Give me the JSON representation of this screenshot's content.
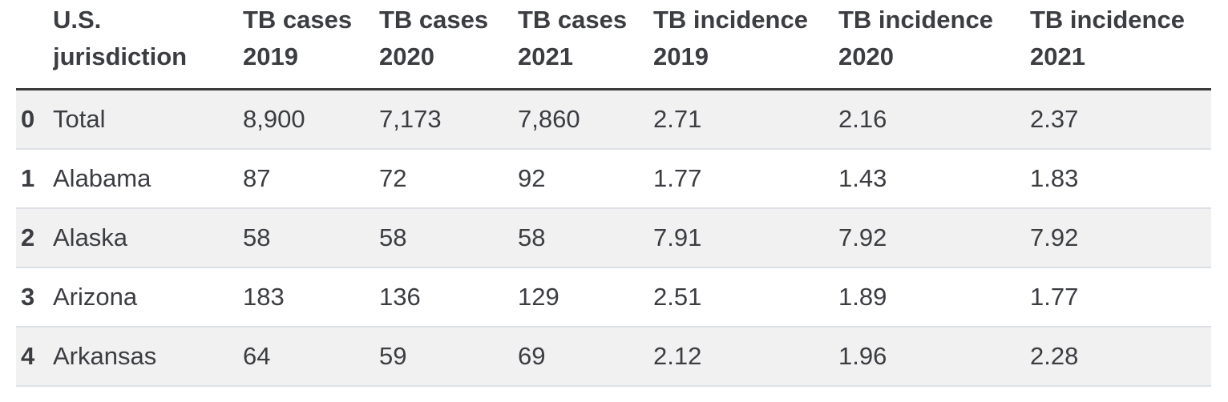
{
  "colors": {
    "text": "#3b3d41",
    "header_rule": "#3a3a3a",
    "row_stripe": "#f1f1f2",
    "row_separator": "#dde1e5",
    "background": "#ffffff"
  },
  "chart_data": {
    "type": "table",
    "title": "",
    "index_header": "",
    "columns": [
      "U.S. jurisdiction",
      "TB cases 2019",
      "TB cases 2020",
      "TB cases 2021",
      "TB incidence 2019",
      "TB incidence 2020",
      "TB incidence 2021"
    ],
    "rows": [
      {
        "index": "0",
        "cells": [
          "Total",
          "8,900",
          "7,173",
          "7,860",
          "2.71",
          "2.16",
          "2.37"
        ]
      },
      {
        "index": "1",
        "cells": [
          "Alabama",
          "87",
          "72",
          "92",
          "1.77",
          "1.43",
          "1.83"
        ]
      },
      {
        "index": "2",
        "cells": [
          "Alaska",
          "58",
          "58",
          "58",
          "7.91",
          "7.92",
          "7.92"
        ]
      },
      {
        "index": "3",
        "cells": [
          "Arizona",
          "183",
          "136",
          "129",
          "2.51",
          "1.89",
          "1.77"
        ]
      },
      {
        "index": "4",
        "cells": [
          "Arkansas",
          "64",
          "59",
          "69",
          "2.12",
          "1.96",
          "2.28"
        ]
      }
    ]
  }
}
